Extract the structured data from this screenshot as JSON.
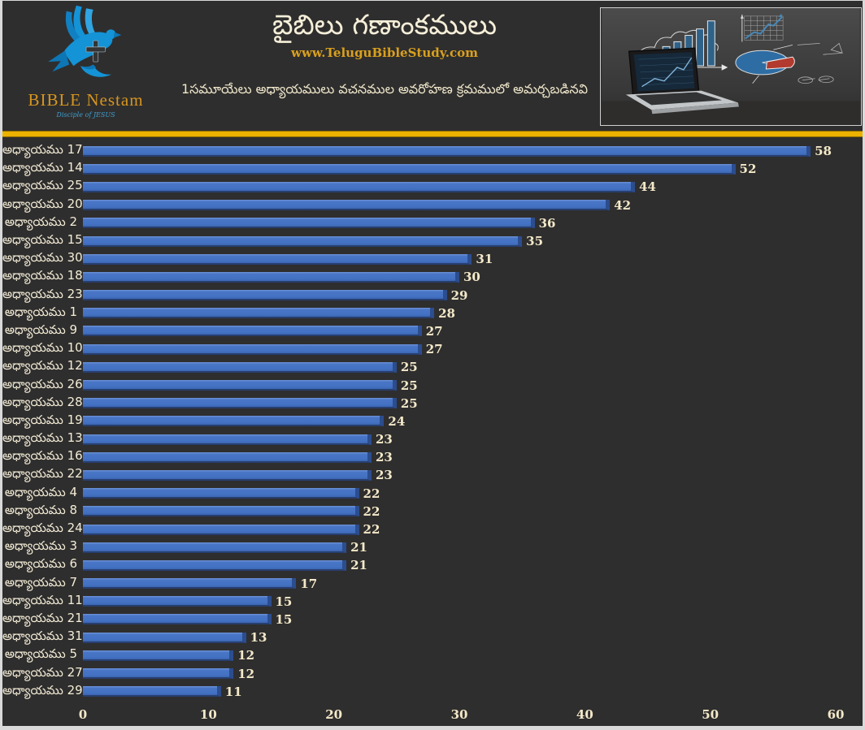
{
  "header": {
    "logo": {
      "name": "BIBLE Nestam",
      "tagline": "Disciple of JESUS"
    },
    "title": "బైబిలు గణాంకములు",
    "website": "www.TeluguBibleStudy.com",
    "subtitle": "1సమూయేలు అధ్యాయములు వచనముల అవరోహణ క్రమములో అమర్చబడినవి"
  },
  "colors": {
    "background": "#2f2e2e",
    "accent_bar": "#ecb200",
    "bar_blue": "#4472c4",
    "bar_edge_dark": "#2c4d8e",
    "cream_text": "#f2ebd3",
    "gold_text": "#d9a01e",
    "logo_blue": "#1493d6"
  },
  "chart_data": {
    "type": "bar",
    "orientation": "horizontal",
    "title": "బైబిలు గణాంకములు",
    "subtitle": "1సమూయేలు అధ్యాయములు వచనముల అవరోహణ క్రమములో అమర్చబడినవి",
    "categories": [
      "అధ్యాయము 17",
      "అధ్యాయము 14",
      "అధ్యాయము 25",
      "అధ్యాయము 20",
      "అధ్యాయము 2",
      "అధ్యాయము 15",
      "అధ్యాయము 30",
      "అధ్యాయము 18",
      "అధ్యాయము 23",
      "అధ్యాయము 1",
      "అధ్యాయము 9",
      "అధ్యాయము 10",
      "అధ్యాయము 12",
      "అధ్యాయము 26",
      "అధ్యాయము 28",
      "అధ్యాయము 19",
      "అధ్యాయము 13",
      "అధ్యాయము 16",
      "అధ్యాయము 22",
      "అధ్యాయము 4",
      "అధ్యాయము 8",
      "అధ్యాయము 24",
      "అధ్యాయము 3",
      "అధ్యాయము 6",
      "అధ్యాయము 7",
      "అధ్యాయము 11",
      "అధ్యాయము 21",
      "అధ్యాయము 31",
      "అధ్యాయము 5",
      "అధ్యాయము 27",
      "అధ్యాయము 29"
    ],
    "values": [
      58,
      52,
      44,
      42,
      36,
      35,
      31,
      30,
      29,
      28,
      27,
      27,
      25,
      25,
      25,
      24,
      23,
      23,
      23,
      22,
      22,
      22,
      21,
      21,
      17,
      15,
      15,
      13,
      12,
      12,
      11
    ],
    "xlabel": "",
    "ylabel": "",
    "xlim": [
      0,
      60
    ],
    "xticks": [
      0,
      10,
      20,
      30,
      40,
      50,
      60
    ],
    "grid": false,
    "legend": false,
    "sort_order": "descending",
    "value_labels": true
  }
}
